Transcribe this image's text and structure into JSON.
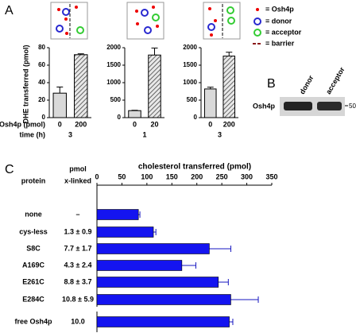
{
  "panel_labels": [
    "A",
    "B",
    "C"
  ],
  "panel_a": {
    "ylabel": "DHE transferred (pmol)",
    "row_labels": [
      "Osh4p (pmol)",
      "time (h)"
    ],
    "legend": [
      "= Osh4p",
      "= donor",
      "= acceptor",
      "= barrier"
    ]
  },
  "gel": {
    "protein": "Osh4p",
    "lanes": [
      "donor",
      "acceptor"
    ],
    "marker": "50"
  },
  "chart_data": [
    {
      "type": "bar",
      "categories": [
        "0",
        "200"
      ],
      "time": "3",
      "values": [
        28,
        72
      ],
      "errors": [
        7,
        1
      ],
      "hatched": [
        false,
        true
      ],
      "color": "#d9d9d9",
      "ylim": [
        0,
        80
      ],
      "yticks": [
        0,
        20,
        40,
        60,
        80
      ]
    },
    {
      "type": "bar",
      "categories": [
        "0",
        "20"
      ],
      "time": "1",
      "values": [
        200,
        1790
      ],
      "errors": [
        10,
        200
      ],
      "hatched": [
        false,
        true
      ],
      "color": "#d9d9d9",
      "ylim": [
        0,
        2000
      ],
      "yticks": [
        0,
        500,
        1000,
        1500,
        2000
      ]
    },
    {
      "type": "bar",
      "categories": [
        "0",
        "200"
      ],
      "time": "3",
      "values": [
        820,
        1760
      ],
      "errors": [
        50,
        110
      ],
      "hatched": [
        false,
        true
      ],
      "color": "#d9d9d9",
      "ylim": [
        0,
        2000
      ],
      "yticks": [
        0,
        500,
        1000,
        1500,
        2000
      ]
    },
    {
      "type": "hbar",
      "title": "cholesterol transferred (pmol)",
      "column_headers": [
        "protein",
        "pmol",
        "x-linked"
      ],
      "categories": [
        "none",
        "cys-less",
        "S8C",
        "A169C",
        "E261C",
        "E284C",
        "free Osh4p"
      ],
      "x_linked": [
        "–",
        "1.3 ± 0.9",
        "7.7 ± 1.7",
        "4.3 ± 2.4",
        "8.8 ± 3.7",
        "10.8 ± 5.9",
        "10.0"
      ],
      "values": [
        83,
        113,
        225,
        170,
        243,
        268,
        265
      ],
      "errors": [
        3,
        5,
        43,
        28,
        20,
        55,
        7
      ],
      "color": "#1414f0",
      "xlim": [
        0,
        350
      ],
      "xticks": [
        0,
        50,
        100,
        150,
        200,
        250,
        300,
        350
      ]
    }
  ]
}
